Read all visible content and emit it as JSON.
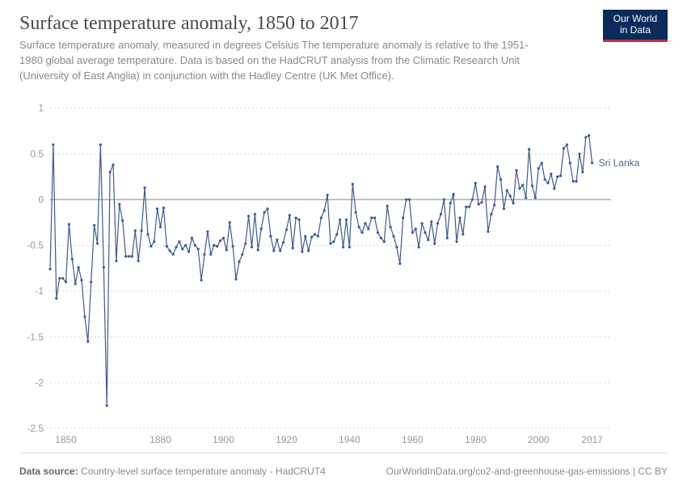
{
  "header": {
    "title": "Surface temperature anomaly, 1850 to 2017",
    "subtitle": "Surface temperature anomaly, measured in degrees Celsius The temperature anomaly is relative to the 1951-1980 global average temperature. Data is based on the HadCRUT analysis from the Climatic Research Unit (University of East Anglia) in conjunction with the Hadley Centre (UK Met Office)."
  },
  "logo": {
    "line1": "Our World",
    "line2": "in Data"
  },
  "footer": {
    "source_label": "Data source:",
    "source_value": "Country-level surface temperature anomaly - HadCRUT4",
    "credit": "OurWorldInData.org/co2-and-greenhouse-gas-emissions | CC BY"
  },
  "chart": {
    "type": "line",
    "x_axis": {
      "min": 1845,
      "max": 2023,
      "ticks": [
        1850,
        1880,
        1900,
        1920,
        1940,
        1960,
        1980,
        2000,
        2017
      ]
    },
    "y_axis": {
      "min": -2.5,
      "max": 1.05,
      "ticks": [
        -2.5,
        -2,
        -1.5,
        -1,
        -0.5,
        0,
        0.5,
        1
      ]
    },
    "grid_color": "#d9d9d9",
    "zero_line_color": "#888888",
    "background_color": "#ffffff",
    "axis_label_color": "#999999",
    "axis_label_fontsize": 12,
    "series": {
      "label": "Sri Lanka",
      "color": "#3f5a8e",
      "marker_radius": 1.6,
      "line_width": 1.2,
      "years": [
        1845,
        1846,
        1847,
        1848,
        1849,
        1850,
        1851,
        1852,
        1853,
        1854,
        1855,
        1856,
        1857,
        1858,
        1859,
        1860,
        1861,
        1862,
        1863,
        1864,
        1865,
        1866,
        1867,
        1868,
        1869,
        1870,
        1871,
        1872,
        1873,
        1874,
        1875,
        1876,
        1877,
        1878,
        1879,
        1880,
        1881,
        1882,
        1883,
        1884,
        1885,
        1886,
        1887,
        1888,
        1889,
        1890,
        1891,
        1892,
        1893,
        1894,
        1895,
        1896,
        1897,
        1898,
        1899,
        1900,
        1901,
        1902,
        1903,
        1904,
        1905,
        1906,
        1907,
        1908,
        1909,
        1910,
        1911,
        1912,
        1913,
        1914,
        1915,
        1916,
        1917,
        1918,
        1919,
        1920,
        1921,
        1922,
        1923,
        1924,
        1925,
        1926,
        1927,
        1928,
        1929,
        1930,
        1931,
        1932,
        1933,
        1934,
        1935,
        1936,
        1937,
        1938,
        1939,
        1940,
        1941,
        1942,
        1943,
        1944,
        1945,
        1946,
        1947,
        1948,
        1949,
        1950,
        1951,
        1952,
        1953,
        1954,
        1955,
        1956,
        1957,
        1958,
        1959,
        1960,
        1961,
        1962,
        1963,
        1964,
        1965,
        1966,
        1967,
        1968,
        1969,
        1970,
        1971,
        1972,
        1973,
        1974,
        1975,
        1976,
        1977,
        1978,
        1979,
        1980,
        1981,
        1982,
        1983,
        1984,
        1985,
        1986,
        1987,
        1988,
        1989,
        1990,
        1991,
        1992,
        1993,
        1994,
        1995,
        1996,
        1997,
        1998,
        1999,
        2000,
        2001,
        2002,
        2003,
        2004,
        2005,
        2006,
        2007,
        2008,
        2009,
        2010,
        2011,
        2012,
        2013,
        2014,
        2015,
        2016,
        2017
      ],
      "values": [
        -0.76,
        0.6,
        -1.08,
        -0.86,
        -0.86,
        -0.9,
        -0.27,
        -0.65,
        -0.92,
        -0.74,
        -0.88,
        -1.28,
        -1.55,
        -0.9,
        -0.28,
        -0.48,
        0.6,
        -0.74,
        -2.25,
        0.3,
        0.38,
        -0.67,
        -0.05,
        -0.23,
        -0.62,
        -0.62,
        -0.62,
        -0.34,
        -0.67,
        -0.34,
        0.13,
        -0.38,
        -0.51,
        -0.46,
        -0.1,
        -0.3,
        -0.09,
        -0.51,
        -0.56,
        -0.6,
        -0.52,
        -0.46,
        -0.54,
        -0.5,
        -0.57,
        -0.42,
        -0.5,
        -0.54,
        -0.88,
        -0.6,
        -0.35,
        -0.6,
        -0.5,
        -0.51,
        -0.45,
        -0.42,
        -0.55,
        -0.25,
        -0.51,
        -0.87,
        -0.68,
        -0.6,
        -0.48,
        -0.18,
        -0.52,
        -0.16,
        -0.55,
        -0.32,
        -0.14,
        -0.1,
        -0.4,
        -0.56,
        -0.44,
        -0.56,
        -0.47,
        -0.33,
        -0.17,
        -0.53,
        -0.2,
        -0.22,
        -0.57,
        -0.4,
        -0.56,
        -0.41,
        -0.38,
        -0.4,
        -0.2,
        -0.12,
        0.05,
        -0.48,
        -0.46,
        -0.38,
        -0.22,
        -0.52,
        -0.22,
        -0.52,
        0.17,
        -0.14,
        -0.3,
        -0.36,
        -0.26,
        -0.32,
        -0.2,
        -0.2,
        -0.36,
        -0.42,
        -0.46,
        -0.07,
        -0.3,
        -0.4,
        -0.52,
        -0.7,
        -0.2,
        0.0,
        0.0,
        -0.36,
        -0.32,
        -0.52,
        -0.26,
        -0.36,
        -0.44,
        -0.24,
        -0.48,
        -0.26,
        -0.16,
        0.0,
        -0.42,
        -0.04,
        0.06,
        -0.46,
        -0.2,
        -0.38,
        -0.08,
        -0.08,
        0.0,
        0.18,
        -0.05,
        -0.03,
        0.14,
        -0.35,
        -0.16,
        -0.06,
        0.36,
        0.22,
        -0.1,
        0.1,
        0.04,
        -0.04,
        0.32,
        0.12,
        0.16,
        0.02,
        0.55,
        0.15,
        0.02,
        0.34,
        0.4,
        0.22,
        0.18,
        0.28,
        0.12,
        0.25,
        0.26,
        0.56,
        0.6,
        0.4,
        0.2,
        0.2,
        0.5,
        0.3,
        0.68,
        0.7,
        0.4
      ],
      "label_fontsize": 12
    }
  }
}
